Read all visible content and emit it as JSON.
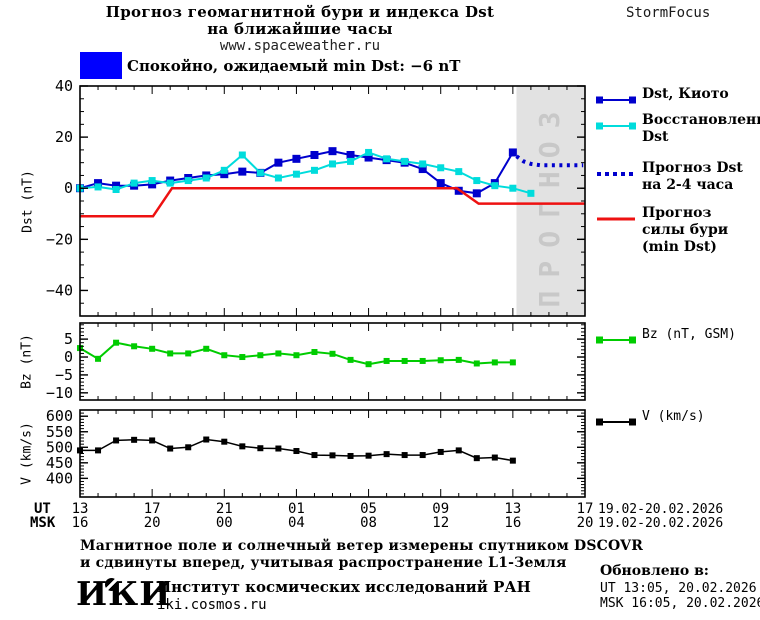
{
  "header": {
    "title_line1": "Прогноз геомагнитной бури и индекса Dst",
    "title_line2": "на ближайшие часы",
    "site": "www.spaceweather.ru",
    "brand": "StormFocus"
  },
  "status": {
    "swatch_color": "#0000ff",
    "text": "Спокойно, ожидаемый min Dst: −6 nT"
  },
  "legend": {
    "dst": {
      "line1": "Dst, Киото"
    },
    "restored": {
      "line1": "Восстановленный",
      "line2": "Dst"
    },
    "forecast": {
      "line1": "Прогноз Dst",
      "line2": "на 2-4 часа"
    },
    "storm": {
      "line1": "Прогноз",
      "line2": "силы бури",
      "line3": "(min Dst)"
    },
    "bz": {
      "line1": "Bz (nT, GSM)"
    },
    "v": {
      "line1": "V (km/s)"
    }
  },
  "chart_data": [
    {
      "type": "line",
      "panel": "dst",
      "ylabel": "Dst (nT)",
      "ylim": [
        -50,
        40
      ],
      "yticks": [
        {
          "v": 40,
          "label": "40"
        },
        {
          "v": 20,
          "label": "20"
        },
        {
          "v": 0,
          "label": "0"
        },
        {
          "v": -20,
          "label": "−20"
        },
        {
          "v": -40,
          "label": "−40"
        }
      ],
      "y_minor_step": 5,
      "x_hours_lim": [
        0,
        28
      ],
      "x_major_step": 4,
      "x_minor_step": 1,
      "forecast_region": {
        "x_start": 24.2,
        "x_end": 28,
        "fill": "#e2e2e2",
        "label": "ПРОГНОЗ",
        "label_color": "#c8c8c8"
      },
      "series": [
        {
          "name": "Dst, Киото",
          "color": "#0000cd",
          "style": "solid",
          "marker": "square",
          "marker_size": 8,
          "width": 2,
          "x": [
            0,
            1,
            2,
            3,
            4,
            5,
            6,
            7,
            8,
            9,
            10,
            11,
            12,
            13,
            14,
            15,
            16,
            17,
            18,
            19,
            20,
            21,
            22,
            23,
            24
          ],
          "values": [
            0,
            2,
            1,
            1,
            1.5,
            3,
            4,
            5,
            5.5,
            6.5,
            6,
            10,
            11.5,
            13,
            14.5,
            13,
            12,
            11,
            10,
            7.5,
            2,
            -1,
            -2,
            2,
            14
          ]
        },
        {
          "name": "Восстановленный Dst",
          "color": "#00dcdc",
          "style": "solid",
          "marker": "square",
          "marker_size": 7,
          "width": 2,
          "x": [
            0,
            1,
            2,
            3,
            4,
            5,
            6,
            7,
            8,
            9,
            10,
            11,
            12,
            13,
            14,
            15,
            16,
            17,
            18,
            19,
            20,
            21,
            22,
            23,
            24,
            25
          ],
          "values": [
            0,
            0.5,
            -0.5,
            2,
            3,
            2,
            3,
            4,
            7,
            13,
            6,
            4,
            5.5,
            7,
            9.5,
            10.5,
            14,
            11.5,
            10.5,
            9.5,
            8,
            6.5,
            3,
            1,
            0,
            -2
          ]
        },
        {
          "name": "Прогноз Dst на 2-4 часа",
          "color": "#0000cd",
          "style": "dotted",
          "marker": "none",
          "width": 4,
          "x": [
            24.2,
            24.6,
            25,
            25.5,
            26,
            26.5,
            27,
            27.5,
            27.9
          ],
          "values": [
            12.5,
            10.5,
            9.5,
            9,
            9,
            9,
            9,
            9,
            9
          ]
        },
        {
          "name": "Прогноз силы бури (min Dst)",
          "color": "#ee1111",
          "style": "solid",
          "marker": "none",
          "width": 2.5,
          "x": [
            0,
            4.05,
            5.1,
            20.9,
            22.1,
            28
          ],
          "values": [
            -11,
            -11,
            0,
            0,
            -6,
            -6
          ]
        }
      ]
    },
    {
      "type": "line",
      "panel": "bz",
      "ylabel": "Bz (nT)",
      "ylim": [
        -12,
        9.5
      ],
      "yticks": [
        {
          "v": 5,
          "label": "5"
        },
        {
          "v": 0,
          "label": "0"
        },
        {
          "v": -5,
          "label": "−5"
        },
        {
          "v": -10,
          "label": "−10"
        }
      ],
      "y_minor_step": 1,
      "x_hours_lim": [
        0,
        28
      ],
      "x_major_step": 4,
      "x_minor_step": 1,
      "series": [
        {
          "name": "Bz (nT, GSM)",
          "color": "#00cc00",
          "style": "solid",
          "marker": "square",
          "marker_size": 6,
          "width": 2,
          "x": [
            0,
            1,
            2,
            3,
            4,
            5,
            6,
            7,
            8,
            9,
            10,
            11,
            12,
            13,
            14,
            15,
            16,
            17,
            18,
            19,
            20,
            21,
            22,
            23,
            24
          ],
          "values": [
            2.5,
            -0.5,
            4,
            3,
            2.3,
            1,
            1,
            2.3,
            0.5,
            0,
            0.5,
            1,
            0.5,
            1.4,
            0.9,
            -0.8,
            -2,
            -1.1,
            -1.1,
            -1.1,
            -0.9,
            -0.8,
            -1.8,
            -1.5,
            -1.5
          ]
        }
      ]
    },
    {
      "type": "line",
      "panel": "v",
      "ylabel": "V (km/s)",
      "ylim": [
        340,
        620
      ],
      "yticks": [
        {
          "v": 600,
          "label": "600"
        },
        {
          "v": 550,
          "label": "550"
        },
        {
          "v": 500,
          "label": "500"
        },
        {
          "v": 450,
          "label": "450"
        },
        {
          "v": 400,
          "label": "400"
        }
      ],
      "y_minor_step": 10,
      "x_hours_lim": [
        0,
        28
      ],
      "x_major_step": 4,
      "x_minor_step": 1,
      "series": [
        {
          "name": "V (km/s)",
          "color": "#000000",
          "style": "solid",
          "marker": "square",
          "marker_size": 6,
          "width": 1.5,
          "x": [
            0,
            1,
            2,
            3,
            4,
            5,
            6,
            7,
            8,
            9,
            10,
            11,
            12,
            13,
            14,
            15,
            16,
            17,
            18,
            19,
            20,
            21,
            22,
            23,
            24
          ],
          "values": [
            490,
            490,
            522,
            524,
            522,
            496,
            500,
            525,
            518,
            503,
            497,
            496,
            488,
            475,
            474,
            472,
            473,
            478,
            475,
            475,
            485,
            490,
            465,
            467,
            457
          ]
        }
      ]
    }
  ],
  "xaxis": {
    "ut_label": "UT",
    "msk_label": "MSK",
    "ut": [
      "13",
      "17",
      "21",
      "01",
      "05",
      "09",
      "13",
      "17"
    ],
    "msk": [
      "16",
      "20",
      "00",
      "04",
      "08",
      "12",
      "16",
      "20"
    ],
    "ut_date": "19.02-20.02.2026",
    "msk_date": "19.02-20.02.2026"
  },
  "footer": {
    "line1": "Магнитное поле и солнечный ветер измерены спутником DSCOVR",
    "line2": "и сдвинуты вперед, учитывая распространение L1-Земля",
    "updated_label": "Обновлено в:",
    "updated_ut": "UT  13:05, 20.02.2026",
    "updated_msk": "MSK 16:05, 20.02.2026",
    "org_logo": "ИКИ",
    "org_name": "Институт космических исследований РАН",
    "org_site": "iki.cosmos.ru"
  }
}
